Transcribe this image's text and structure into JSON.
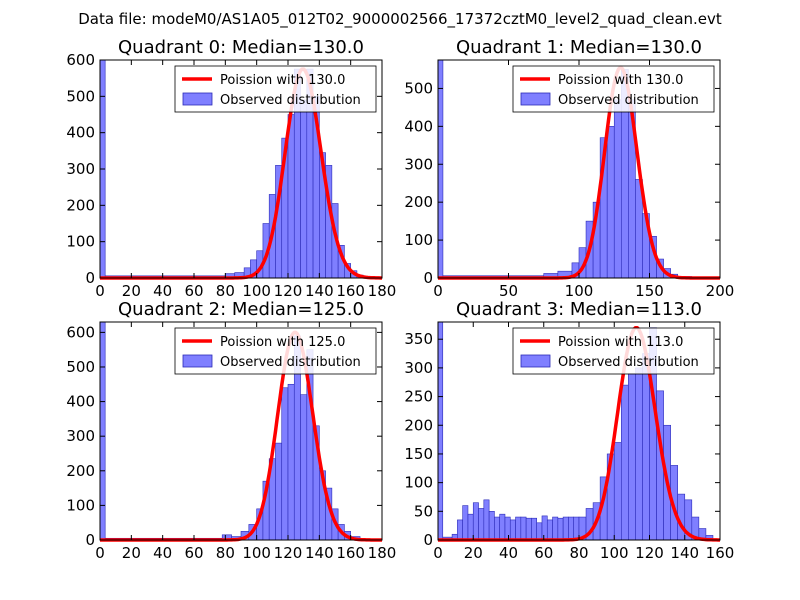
{
  "figure": {
    "title": "Data file: modeM0/AS1A05_012T02_9000002566_17372cztM0_level2_quad_clean.evt"
  },
  "style": {
    "hist_fill": "#7f7fff",
    "hist_edge": "#2b2bb8",
    "poisson_color": "#ff0000",
    "axis_color": "#000000"
  },
  "chart_data": [
    {
      "type": "histogram",
      "title": "Quadrant 0: Median=130.0",
      "legend": [
        "Poission with 130.0",
        "Observed distribution"
      ],
      "legend_position": "top-right",
      "grid": false,
      "xlim": [
        0,
        180
      ],
      "ylim": [
        0,
        600
      ],
      "xticks": [
        0,
        20,
        40,
        60,
        80,
        100,
        120,
        140,
        160,
        180
      ],
      "yticks": [
        0,
        100,
        200,
        300,
        400,
        500,
        600
      ],
      "poisson_mean": 130.0,
      "poisson_peak": 575,
      "bins": [
        [
          0,
          3.3,
          600
        ],
        [
          3.3,
          80,
          6
        ],
        [
          80,
          86,
          12
        ],
        [
          86,
          92,
          15
        ],
        [
          92,
          96,
          28
        ],
        [
          96,
          100,
          50
        ],
        [
          100,
          104,
          75
        ],
        [
          104,
          108,
          150
        ],
        [
          108,
          112,
          230
        ],
        [
          112,
          116,
          310
        ],
        [
          116,
          120,
          385
        ],
        [
          120,
          124,
          450
        ],
        [
          124,
          128,
          575
        ],
        [
          128,
          132,
          490
        ],
        [
          132,
          136,
          575
        ],
        [
          136,
          140,
          500
        ],
        [
          140,
          144,
          345
        ],
        [
          144,
          148,
          310
        ],
        [
          148,
          152,
          205
        ],
        [
          152,
          156,
          90
        ],
        [
          156,
          160,
          40
        ],
        [
          160,
          164,
          20
        ],
        [
          164,
          168,
          8
        ]
      ]
    },
    {
      "type": "histogram",
      "title": "Quadrant 1: Median=130.0",
      "legend": [
        "Poission with 130.0",
        "Observed distribution"
      ],
      "legend_position": "top-right",
      "grid": false,
      "xlim": [
        0,
        200
      ],
      "ylim": [
        0,
        575
      ],
      "xticks": [
        0,
        50,
        100,
        150,
        200
      ],
      "yticks": [
        0,
        100,
        200,
        300,
        400,
        500
      ],
      "poisson_mean": 130.0,
      "poisson_peak": 555,
      "bins": [
        [
          0,
          3.5,
          575
        ],
        [
          3.5,
          75,
          6
        ],
        [
          75,
          85,
          12
        ],
        [
          85,
          95,
          18
        ],
        [
          95,
          100,
          40
        ],
        [
          100,
          105,
          80
        ],
        [
          105,
          110,
          150
        ],
        [
          110,
          115,
          200
        ],
        [
          115,
          120,
          370
        ],
        [
          120,
          125,
          400
        ],
        [
          125,
          130,
          470
        ],
        [
          130,
          135,
          550
        ],
        [
          135,
          140,
          470
        ],
        [
          140,
          145,
          260
        ],
        [
          145,
          150,
          170
        ],
        [
          150,
          155,
          110
        ],
        [
          155,
          160,
          50
        ],
        [
          160,
          165,
          25
        ],
        [
          165,
          170,
          10
        ],
        [
          170,
          180,
          4
        ]
      ]
    },
    {
      "type": "histogram",
      "title": "Quadrant 2: Median=125.0",
      "legend": [
        "Poission with 125.0",
        "Observed distribution"
      ],
      "legend_position": "top-right",
      "grid": false,
      "xlim": [
        0,
        180
      ],
      "ylim": [
        0,
        630
      ],
      "xticks": [
        0,
        20,
        40,
        60,
        80,
        100,
        120,
        140,
        160,
        180
      ],
      "yticks": [
        0,
        100,
        200,
        300,
        400,
        500,
        600
      ],
      "poisson_mean": 125.0,
      "poisson_peak": 600,
      "bins": [
        [
          0,
          3.3,
          630
        ],
        [
          3.3,
          78,
          5
        ],
        [
          78,
          84,
          15
        ],
        [
          84,
          90,
          10
        ],
        [
          90,
          95,
          25
        ],
        [
          95,
          100,
          45
        ],
        [
          100,
          104,
          90
        ],
        [
          104,
          108,
          170
        ],
        [
          108,
          112,
          235
        ],
        [
          112,
          116,
          280
        ],
        [
          116,
          120,
          440
        ],
        [
          120,
          124,
          450
        ],
        [
          124,
          128,
          590
        ],
        [
          128,
          132,
          420
        ],
        [
          132,
          136,
          550
        ],
        [
          136,
          140,
          330
        ],
        [
          140,
          144,
          200
        ],
        [
          144,
          148,
          150
        ],
        [
          148,
          152,
          90
        ],
        [
          152,
          156,
          45
        ],
        [
          156,
          160,
          25
        ],
        [
          160,
          166,
          10
        ]
      ]
    },
    {
      "type": "histogram",
      "title": "Quadrant 3: Median=113.0",
      "legend": [
        "Poission with 113.0",
        "Observed distribution"
      ],
      "legend_position": "top-right",
      "grid": false,
      "xlim": [
        0,
        160
      ],
      "ylim": [
        0,
        380
      ],
      "xticks": [
        0,
        20,
        40,
        60,
        80,
        100,
        120,
        140,
        160
      ],
      "yticks": [
        0,
        50,
        100,
        150,
        200,
        250,
        300,
        350
      ],
      "poisson_mean": 113.0,
      "poisson_peak": 370,
      "bins": [
        [
          0,
          2.7,
          380
        ],
        [
          2.7,
          8,
          5
        ],
        [
          8,
          11,
          10
        ],
        [
          11,
          14,
          35
        ],
        [
          14,
          17,
          60
        ],
        [
          17,
          20,
          45
        ],
        [
          20,
          23,
          65
        ],
        [
          23,
          26,
          55
        ],
        [
          26,
          29,
          70
        ],
        [
          29,
          32,
          50
        ],
        [
          32,
          35,
          40
        ],
        [
          35,
          38,
          45
        ],
        [
          38,
          41,
          40
        ],
        [
          41,
          44,
          35
        ],
        [
          44,
          47,
          40
        ],
        [
          47,
          50,
          40
        ],
        [
          50,
          53,
          38
        ],
        [
          53,
          56,
          38
        ],
        [
          56,
          59,
          30
        ],
        [
          59,
          62,
          42
        ],
        [
          62,
          65,
          35
        ],
        [
          65,
          68,
          40
        ],
        [
          68,
          71,
          38
        ],
        [
          71,
          74,
          40
        ],
        [
          74,
          77,
          40
        ],
        [
          77,
          80,
          40
        ],
        [
          80,
          84,
          40
        ],
        [
          84,
          88,
          55
        ],
        [
          88,
          92,
          65
        ],
        [
          92,
          96,
          110
        ],
        [
          96,
          100,
          150
        ],
        [
          100,
          104,
          170
        ],
        [
          104,
          108,
          270
        ],
        [
          108,
          112,
          290
        ],
        [
          112,
          116,
          300
        ],
        [
          116,
          120,
          325
        ],
        [
          120,
          124,
          370
        ],
        [
          124,
          128,
          260
        ],
        [
          128,
          132,
          200
        ],
        [
          132,
          136,
          130
        ],
        [
          136,
          140,
          80
        ],
        [
          140,
          144,
          70
        ],
        [
          144,
          148,
          40
        ],
        [
          148,
          152,
          20
        ],
        [
          152,
          156,
          8
        ]
      ]
    }
  ]
}
